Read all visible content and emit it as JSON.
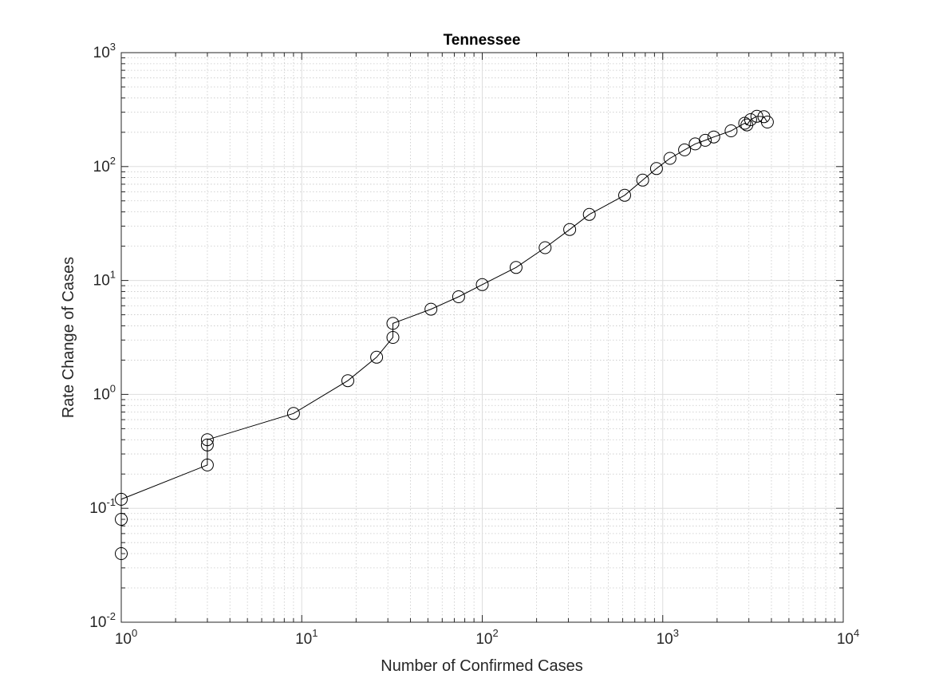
{
  "chart_data": {
    "type": "line",
    "title": "Tennessee",
    "xlabel": "Number of Confirmed Cases",
    "ylabel": "Rate Change of Cases",
    "xscale": "log",
    "yscale": "log",
    "xlim": [
      1,
      10000
    ],
    "ylim": [
      0.01,
      1000
    ],
    "xticks": [
      {
        "base": "10",
        "exp": "0"
      },
      {
        "base": "10",
        "exp": "1"
      },
      {
        "base": "10",
        "exp": "2"
      },
      {
        "base": "10",
        "exp": "3"
      },
      {
        "base": "10",
        "exp": "4"
      }
    ],
    "yticks": [
      {
        "base": "10",
        "exp": "-2"
      },
      {
        "base": "10",
        "exp": "-1"
      },
      {
        "base": "10",
        "exp": "0"
      },
      {
        "base": "10",
        "exp": "1"
      },
      {
        "base": "10",
        "exp": "2"
      },
      {
        "base": "10",
        "exp": "3"
      }
    ],
    "grid": true,
    "minor_grid": true,
    "line_color": "#000000",
    "marker": "circle-open",
    "series": [
      {
        "x": [
          1,
          1,
          1,
          3,
          3,
          3,
          9,
          18,
          26,
          32,
          32,
          52,
          74,
          100,
          154,
          223,
          305,
          392,
          615,
          774,
          923,
          1097,
          1321,
          1513,
          1720,
          1918,
          2392,
          2845,
          2926,
          3067,
          3322,
          3633,
          3800
        ],
        "y": [
          0.04,
          0.08,
          0.12,
          0.24,
          0.36,
          0.4,
          0.68,
          1.32,
          2.12,
          3.16,
          4.2,
          5.6,
          7.2,
          9.2,
          13,
          19.4,
          28,
          38,
          56,
          76,
          96,
          118,
          140,
          158,
          170,
          182,
          206,
          240,
          232,
          258,
          276,
          274,
          246
        ]
      }
    ]
  }
}
